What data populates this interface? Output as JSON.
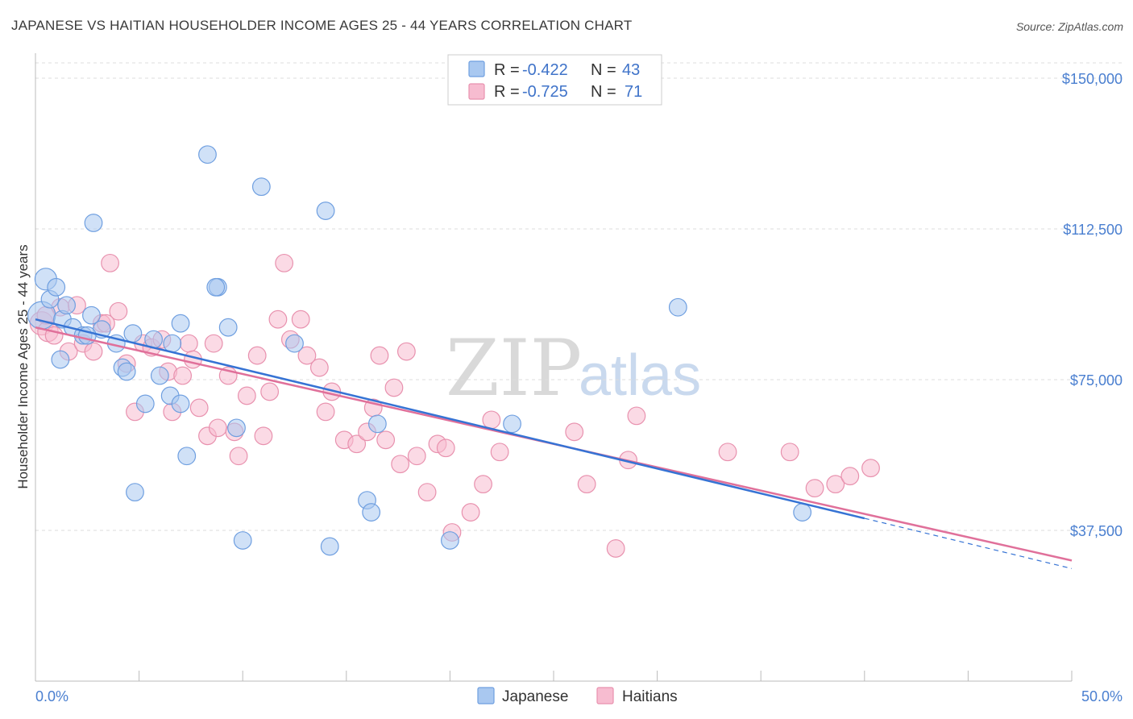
{
  "header": {
    "title": "JAPANESE VS HAITIAN HOUSEHOLDER INCOME AGES 25 - 44 YEARS CORRELATION CHART",
    "source": "Source: ZipAtlas.com"
  },
  "watermark": {
    "zip": "ZIP",
    "atlas": "atlas"
  },
  "colors": {
    "japanese_fill": "#a9c8f0",
    "japanese_stroke": "#6f9fe0",
    "japanese_line": "#3673d4",
    "haitian_fill": "#f7bcd0",
    "haitian_stroke": "#e891ae",
    "haitian_line": "#e0709a",
    "tick_text": "#4a7fd0",
    "grid": "#dddddd"
  },
  "legend_top": {
    "rows": [
      {
        "r_label": "R =",
        "r_value": "-0.422",
        "n_label": "N =",
        "n_value": "43"
      },
      {
        "r_label": "R =",
        "r_value": "-0.725",
        "n_label": "N =",
        "n_value": "71"
      }
    ]
  },
  "legend_bottom": {
    "items": [
      "Japanese",
      "Haitians"
    ]
  },
  "chart_data": {
    "type": "scatter",
    "title": "JAPANESE VS HAITIAN HOUSEHOLDER INCOME AGES 25 - 44 YEARS CORRELATION CHART",
    "xlabel": "",
    "ylabel": "Householder Income Ages 25 - 44 years",
    "xlim": [
      0,
      50
    ],
    "ylim": [
      0,
      155000
    ],
    "x_tick_labels": [
      "0.0%",
      "50.0%"
    ],
    "y_ticks": [
      37500,
      75000,
      112500,
      150000
    ],
    "y_tick_labels": [
      "$37,500",
      "$75,000",
      "$112,500",
      "$150,000"
    ],
    "grid": true,
    "legend_position": "top-center",
    "series": [
      {
        "name": "Japanese",
        "r": -0.422,
        "n": 43,
        "trend": {
          "x0": 0,
          "y0": 90000,
          "x1": 40,
          "y1": 40500,
          "dash_to_x": 50,
          "dash_to_y": 28000
        },
        "points": [
          [
            0.3,
            91000,
            1.9
          ],
          [
            0.5,
            100000,
            1.5
          ],
          [
            0.7,
            95000,
            1.2
          ],
          [
            1.0,
            98000,
            1.2
          ],
          [
            1.2,
            80000,
            1.2
          ],
          [
            1.3,
            90000,
            1.2
          ],
          [
            1.5,
            93500,
            1.2
          ],
          [
            1.8,
            88000,
            1.2
          ],
          [
            2.3,
            86000,
            1.2
          ],
          [
            2.7,
            91000,
            1.2
          ],
          [
            3.2,
            87500,
            1.2
          ],
          [
            3.9,
            84000,
            1.2
          ],
          [
            4.2,
            78000,
            1.2
          ],
          [
            4.7,
            86500,
            1.2
          ],
          [
            5.3,
            69000,
            1.2
          ],
          [
            5.7,
            85000,
            1.2
          ],
          [
            6.0,
            76000,
            1.2
          ],
          [
            6.6,
            84000,
            1.2
          ],
          [
            7.0,
            89000,
            1.2
          ],
          [
            7.3,
            56000,
            1.2
          ],
          [
            8.3,
            131000,
            1.2
          ],
          [
            8.8,
            98000,
            1.2
          ],
          [
            9.3,
            88000,
            1.2
          ],
          [
            9.7,
            63000,
            1.2
          ],
          [
            10.9,
            123000,
            1.2
          ],
          [
            12.5,
            84000,
            1.2
          ],
          [
            14.0,
            117000,
            1.2
          ],
          [
            14.2,
            33500,
            1.2
          ],
          [
            16.0,
            45000,
            1.2
          ],
          [
            16.2,
            42000,
            1.2
          ],
          [
            16.5,
            64000,
            1.2
          ],
          [
            20.0,
            35000,
            1.2
          ],
          [
            23.0,
            64000,
            1.2
          ],
          [
            31.0,
            93000,
            1.2
          ],
          [
            37.0,
            42000,
            1.2
          ],
          [
            10.0,
            35000,
            1.2
          ],
          [
            2.8,
            114000,
            1.2
          ],
          [
            4.4,
            77000,
            1.2
          ],
          [
            6.5,
            71000,
            1.2
          ],
          [
            4.8,
            47000,
            1.2
          ],
          [
            8.7,
            98000,
            1.2
          ],
          [
            7.0,
            69000,
            1.2
          ],
          [
            2.5,
            86000,
            1.2
          ]
        ]
      },
      {
        "name": "Haitians",
        "r": -0.725,
        "n": 71,
        "trend": {
          "x0": 0,
          "y0": 88000,
          "x1": 50,
          "y1": 30000
        },
        "points": [
          [
            0.3,
            89000,
            1.6
          ],
          [
            0.6,
            87000,
            1.4
          ],
          [
            0.9,
            86000,
            1.2
          ],
          [
            1.2,
            93000,
            1.2
          ],
          [
            1.6,
            82000,
            1.2
          ],
          [
            2.0,
            93500,
            1.2
          ],
          [
            2.3,
            84000,
            1.2
          ],
          [
            2.8,
            82000,
            1.2
          ],
          [
            3.2,
            89000,
            1.2
          ],
          [
            3.6,
            104000,
            1.2
          ],
          [
            4.0,
            92000,
            1.2
          ],
          [
            4.4,
            79000,
            1.2
          ],
          [
            4.8,
            67000,
            1.2
          ],
          [
            5.2,
            84000,
            1.2
          ],
          [
            5.6,
            83000,
            1.2
          ],
          [
            6.1,
            85000,
            1.2
          ],
          [
            6.4,
            77000,
            1.2
          ],
          [
            6.6,
            67000,
            1.2
          ],
          [
            7.1,
            76000,
            1.2
          ],
          [
            7.4,
            84000,
            1.2
          ],
          [
            7.6,
            80000,
            1.2
          ],
          [
            7.9,
            68000,
            1.2
          ],
          [
            8.3,
            61000,
            1.2
          ],
          [
            8.6,
            84000,
            1.2
          ],
          [
            8.8,
            63000,
            1.2
          ],
          [
            9.3,
            76000,
            1.2
          ],
          [
            9.6,
            62000,
            1.2
          ],
          [
            9.8,
            56000,
            1.2
          ],
          [
            10.2,
            71000,
            1.2
          ],
          [
            10.7,
            81000,
            1.2
          ],
          [
            11.0,
            61000,
            1.2
          ],
          [
            11.3,
            72000,
            1.2
          ],
          [
            11.7,
            90000,
            1.2
          ],
          [
            12.0,
            104000,
            1.2
          ],
          [
            12.3,
            85000,
            1.2
          ],
          [
            12.8,
            90000,
            1.2
          ],
          [
            13.1,
            81000,
            1.2
          ],
          [
            13.7,
            78000,
            1.2
          ],
          [
            14.0,
            67000,
            1.2
          ],
          [
            14.3,
            72000,
            1.2
          ],
          [
            14.9,
            60000,
            1.2
          ],
          [
            15.5,
            59000,
            1.2
          ],
          [
            16.0,
            62000,
            1.2
          ],
          [
            16.3,
            68000,
            1.2
          ],
          [
            16.6,
            81000,
            1.2
          ],
          [
            16.9,
            60000,
            1.2
          ],
          [
            17.3,
            73000,
            1.2
          ],
          [
            17.6,
            54000,
            1.2
          ],
          [
            17.9,
            82000,
            1.2
          ],
          [
            18.4,
            56000,
            1.2
          ],
          [
            18.9,
            47000,
            1.2
          ],
          [
            19.4,
            59000,
            1.2
          ],
          [
            19.8,
            58000,
            1.2
          ],
          [
            20.1,
            37000,
            1.2
          ],
          [
            21.0,
            42000,
            1.2
          ],
          [
            21.6,
            49000,
            1.2
          ],
          [
            22.0,
            65000,
            1.2
          ],
          [
            22.4,
            57000,
            1.2
          ],
          [
            26.0,
            62000,
            1.2
          ],
          [
            26.6,
            49000,
            1.2
          ],
          [
            28.0,
            33000,
            1.2
          ],
          [
            28.6,
            55000,
            1.2
          ],
          [
            29.0,
            66000,
            1.2
          ],
          [
            33.4,
            57000,
            1.2
          ],
          [
            36.4,
            57000,
            1.2
          ],
          [
            37.6,
            48000,
            1.2
          ],
          [
            38.6,
            49000,
            1.2
          ],
          [
            39.3,
            51000,
            1.2
          ],
          [
            40.3,
            53000,
            1.2
          ],
          [
            3.4,
            89000,
            1.2
          ],
          [
            0.5,
            91000,
            1.2
          ]
        ]
      }
    ]
  }
}
